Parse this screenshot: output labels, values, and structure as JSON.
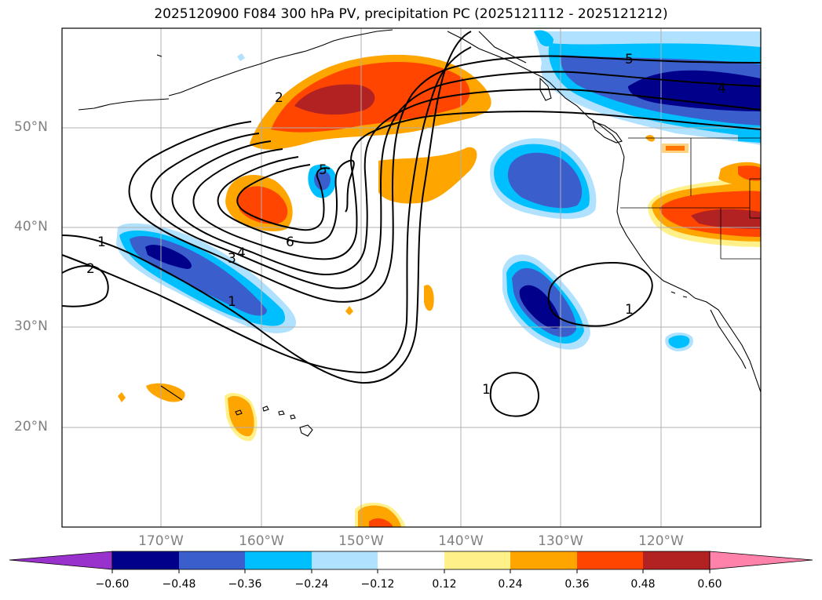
{
  "title": "2025120900 F084 300 hPa PV, precipitation PC (2025121112 - 2025121212)",
  "lat_labels": [
    "50°N",
    "40°N",
    "30°N",
    "20°N"
  ],
  "lon_labels": [
    "170°W",
    "160°W",
    "150°W",
    "140°W",
    "130°W",
    "120°W"
  ],
  "colorbar": {
    "ticks": [
      "−0.60",
      "−0.48",
      "−0.36",
      "−0.24",
      "−0.12",
      "0.12",
      "0.24",
      "0.36",
      "0.48",
      "0.60"
    ],
    "colors": {
      "under": "#9932cc",
      "neg_060": "#00008b",
      "neg_048": "#3a5fcd",
      "neg_036": "#00bfff",
      "neg_024": "#b0e2ff",
      "neutral": "#ffffff",
      "pos_012": "#fff08a",
      "pos_024": "#ffa500",
      "pos_036": "#ff4500",
      "pos_048": "#b22222",
      "over": "#ff82ab"
    }
  },
  "contour_labels": [
    "1",
    "2",
    "3",
    "4",
    "5",
    "6",
    "2",
    "1",
    "5",
    "4",
    "1",
    "1"
  ]
}
